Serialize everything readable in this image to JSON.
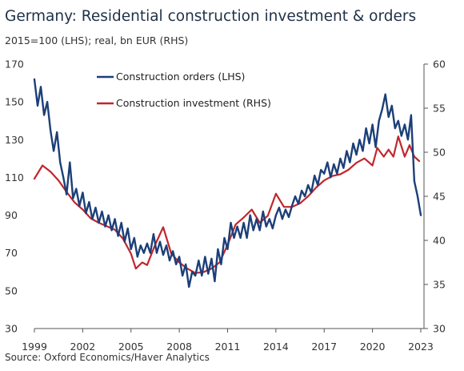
{
  "chart_data": {
    "type": "line",
    "title": "Germany: Residential construction investment & orders",
    "subtitle": "2015=100 (LHS); real, bn EUR (RHS)",
    "source": "Source: Oxford Economics/Haver Analytics",
    "x_ticks": [
      "1999",
      "2002",
      "2005",
      "2008",
      "2011",
      "2014",
      "2017",
      "2020",
      "2023"
    ],
    "xlim": [
      1999,
      2023.2
    ],
    "ylim_left": [
      30,
      170
    ],
    "yticks_left": [
      "30",
      "50",
      "70",
      "90",
      "110",
      "130",
      "150",
      "170"
    ],
    "ylim_right": [
      30,
      60
    ],
    "yticks_right": [
      "30",
      "35",
      "40",
      "45",
      "50",
      "55",
      "60"
    ],
    "grid": false,
    "legend_position": "top-center",
    "series": [
      {
        "name": "Construction orders (LHS)",
        "axis": "left",
        "color": "#1c3f78",
        "points": [
          [
            1999.0,
            162
          ],
          [
            1999.2,
            148
          ],
          [
            1999.4,
            158
          ],
          [
            1999.6,
            143
          ],
          [
            1999.8,
            150
          ],
          [
            2000.0,
            135
          ],
          [
            2000.2,
            124
          ],
          [
            2000.4,
            134
          ],
          [
            2000.6,
            118
          ],
          [
            2000.8,
            110
          ],
          [
            2001.0,
            101
          ],
          [
            2001.2,
            118
          ],
          [
            2001.4,
            99
          ],
          [
            2001.6,
            104
          ],
          [
            2001.8,
            95
          ],
          [
            2002.0,
            102
          ],
          [
            2002.2,
            91
          ],
          [
            2002.4,
            97
          ],
          [
            2002.6,
            88
          ],
          [
            2002.8,
            94
          ],
          [
            2003.0,
            86
          ],
          [
            2003.2,
            92
          ],
          [
            2003.4,
            84
          ],
          [
            2003.6,
            90
          ],
          [
            2003.8,
            82
          ],
          [
            2004.0,
            88
          ],
          [
            2004.2,
            79
          ],
          [
            2004.4,
            86
          ],
          [
            2004.6,
            76
          ],
          [
            2004.8,
            83
          ],
          [
            2005.0,
            72
          ],
          [
            2005.2,
            78
          ],
          [
            2005.4,
            68
          ],
          [
            2005.6,
            74
          ],
          [
            2005.8,
            70
          ],
          [
            2006.0,
            75
          ],
          [
            2006.2,
            70
          ],
          [
            2006.4,
            80
          ],
          [
            2006.6,
            70
          ],
          [
            2006.8,
            76
          ],
          [
            2007.0,
            69
          ],
          [
            2007.2,
            74
          ],
          [
            2007.4,
            66
          ],
          [
            2007.6,
            71
          ],
          [
            2007.8,
            64
          ],
          [
            2008.0,
            68
          ],
          [
            2008.2,
            58
          ],
          [
            2008.4,
            64
          ],
          [
            2008.6,
            52
          ],
          [
            2008.8,
            60
          ],
          [
            2009.0,
            58
          ],
          [
            2009.2,
            66
          ],
          [
            2009.4,
            58
          ],
          [
            2009.6,
            68
          ],
          [
            2009.8,
            59
          ],
          [
            2010.0,
            67
          ],
          [
            2010.2,
            55
          ],
          [
            2010.4,
            72
          ],
          [
            2010.6,
            64
          ],
          [
            2010.8,
            78
          ],
          [
            2011.0,
            72
          ],
          [
            2011.2,
            86
          ],
          [
            2011.4,
            78
          ],
          [
            2011.6,
            84
          ],
          [
            2011.8,
            78
          ],
          [
            2012.0,
            86
          ],
          [
            2012.2,
            78
          ],
          [
            2012.4,
            90
          ],
          [
            2012.6,
            82
          ],
          [
            2012.8,
            88
          ],
          [
            2013.0,
            82
          ],
          [
            2013.2,
            92
          ],
          [
            2013.4,
            84
          ],
          [
            2013.6,
            88
          ],
          [
            2013.8,
            83
          ],
          [
            2014.0,
            90
          ],
          [
            2014.2,
            94
          ],
          [
            2014.4,
            88
          ],
          [
            2014.6,
            93
          ],
          [
            2014.8,
            89
          ],
          [
            2015.0,
            95
          ],
          [
            2015.2,
            100
          ],
          [
            2015.4,
            96
          ],
          [
            2015.6,
            103
          ],
          [
            2015.8,
            100
          ],
          [
            2016.0,
            106
          ],
          [
            2016.2,
            102
          ],
          [
            2016.4,
            111
          ],
          [
            2016.6,
            106
          ],
          [
            2016.8,
            114
          ],
          [
            2017.0,
            112
          ],
          [
            2017.2,
            118
          ],
          [
            2017.4,
            110
          ],
          [
            2017.6,
            117
          ],
          [
            2017.8,
            112
          ],
          [
            2018.0,
            120
          ],
          [
            2018.2,
            115
          ],
          [
            2018.4,
            124
          ],
          [
            2018.6,
            118
          ],
          [
            2018.8,
            128
          ],
          [
            2019.0,
            122
          ],
          [
            2019.2,
            130
          ],
          [
            2019.4,
            124
          ],
          [
            2019.6,
            136
          ],
          [
            2019.8,
            128
          ],
          [
            2020.0,
            138
          ],
          [
            2020.2,
            126
          ],
          [
            2020.4,
            140
          ],
          [
            2020.6,
            146
          ],
          [
            2020.8,
            154
          ],
          [
            2021.0,
            142
          ],
          [
            2021.2,
            148
          ],
          [
            2021.4,
            136
          ],
          [
            2021.6,
            140
          ],
          [
            2021.8,
            132
          ],
          [
            2022.0,
            138
          ],
          [
            2022.2,
            130
          ],
          [
            2022.4,
            143
          ],
          [
            2022.6,
            108
          ],
          [
            2022.8,
            100
          ],
          [
            2023.0,
            90
          ]
        ]
      },
      {
        "name": "Construction investment (RHS)",
        "axis": "right",
        "color": "#c0272d",
        "points": [
          [
            1999.0,
            47.0
          ],
          [
            1999.5,
            48.5
          ],
          [
            2000.0,
            47.8
          ],
          [
            2000.5,
            46.8
          ],
          [
            2001.0,
            45.5
          ],
          [
            2001.5,
            44.3
          ],
          [
            2002.0,
            43.5
          ],
          [
            2002.5,
            42.5
          ],
          [
            2003.0,
            42.0
          ],
          [
            2003.5,
            41.6
          ],
          [
            2004.0,
            41.2
          ],
          [
            2004.5,
            40.2
          ],
          [
            2005.0,
            38.5
          ],
          [
            2005.3,
            36.8
          ],
          [
            2005.7,
            37.5
          ],
          [
            2006.0,
            37.2
          ],
          [
            2006.5,
            39.5
          ],
          [
            2007.0,
            41.5
          ],
          [
            2007.5,
            38.5
          ],
          [
            2008.0,
            37.5
          ],
          [
            2008.5,
            36.8
          ],
          [
            2009.0,
            36.3
          ],
          [
            2009.5,
            36.4
          ],
          [
            2010.0,
            36.8
          ],
          [
            2010.5,
            37.5
          ],
          [
            2011.0,
            39.5
          ],
          [
            2011.5,
            41.8
          ],
          [
            2012.0,
            42.6
          ],
          [
            2012.5,
            43.5
          ],
          [
            2013.0,
            42.0
          ],
          [
            2013.5,
            42.8
          ],
          [
            2014.0,
            45.3
          ],
          [
            2014.5,
            43.8
          ],
          [
            2015.0,
            43.8
          ],
          [
            2015.5,
            44.2
          ],
          [
            2016.0,
            45.0
          ],
          [
            2016.5,
            46.0
          ],
          [
            2017.0,
            46.8
          ],
          [
            2017.5,
            47.3
          ],
          [
            2018.0,
            47.5
          ],
          [
            2018.5,
            48.0
          ],
          [
            2019.0,
            48.8
          ],
          [
            2019.5,
            49.3
          ],
          [
            2020.0,
            48.5
          ],
          [
            2020.3,
            50.5
          ],
          [
            2020.7,
            49.5
          ],
          [
            2021.0,
            50.3
          ],
          [
            2021.3,
            49.5
          ],
          [
            2021.6,
            51.8
          ],
          [
            2022.0,
            49.5
          ],
          [
            2022.3,
            50.8
          ],
          [
            2022.6,
            49.5
          ],
          [
            2022.9,
            49.0
          ]
        ]
      }
    ]
  }
}
